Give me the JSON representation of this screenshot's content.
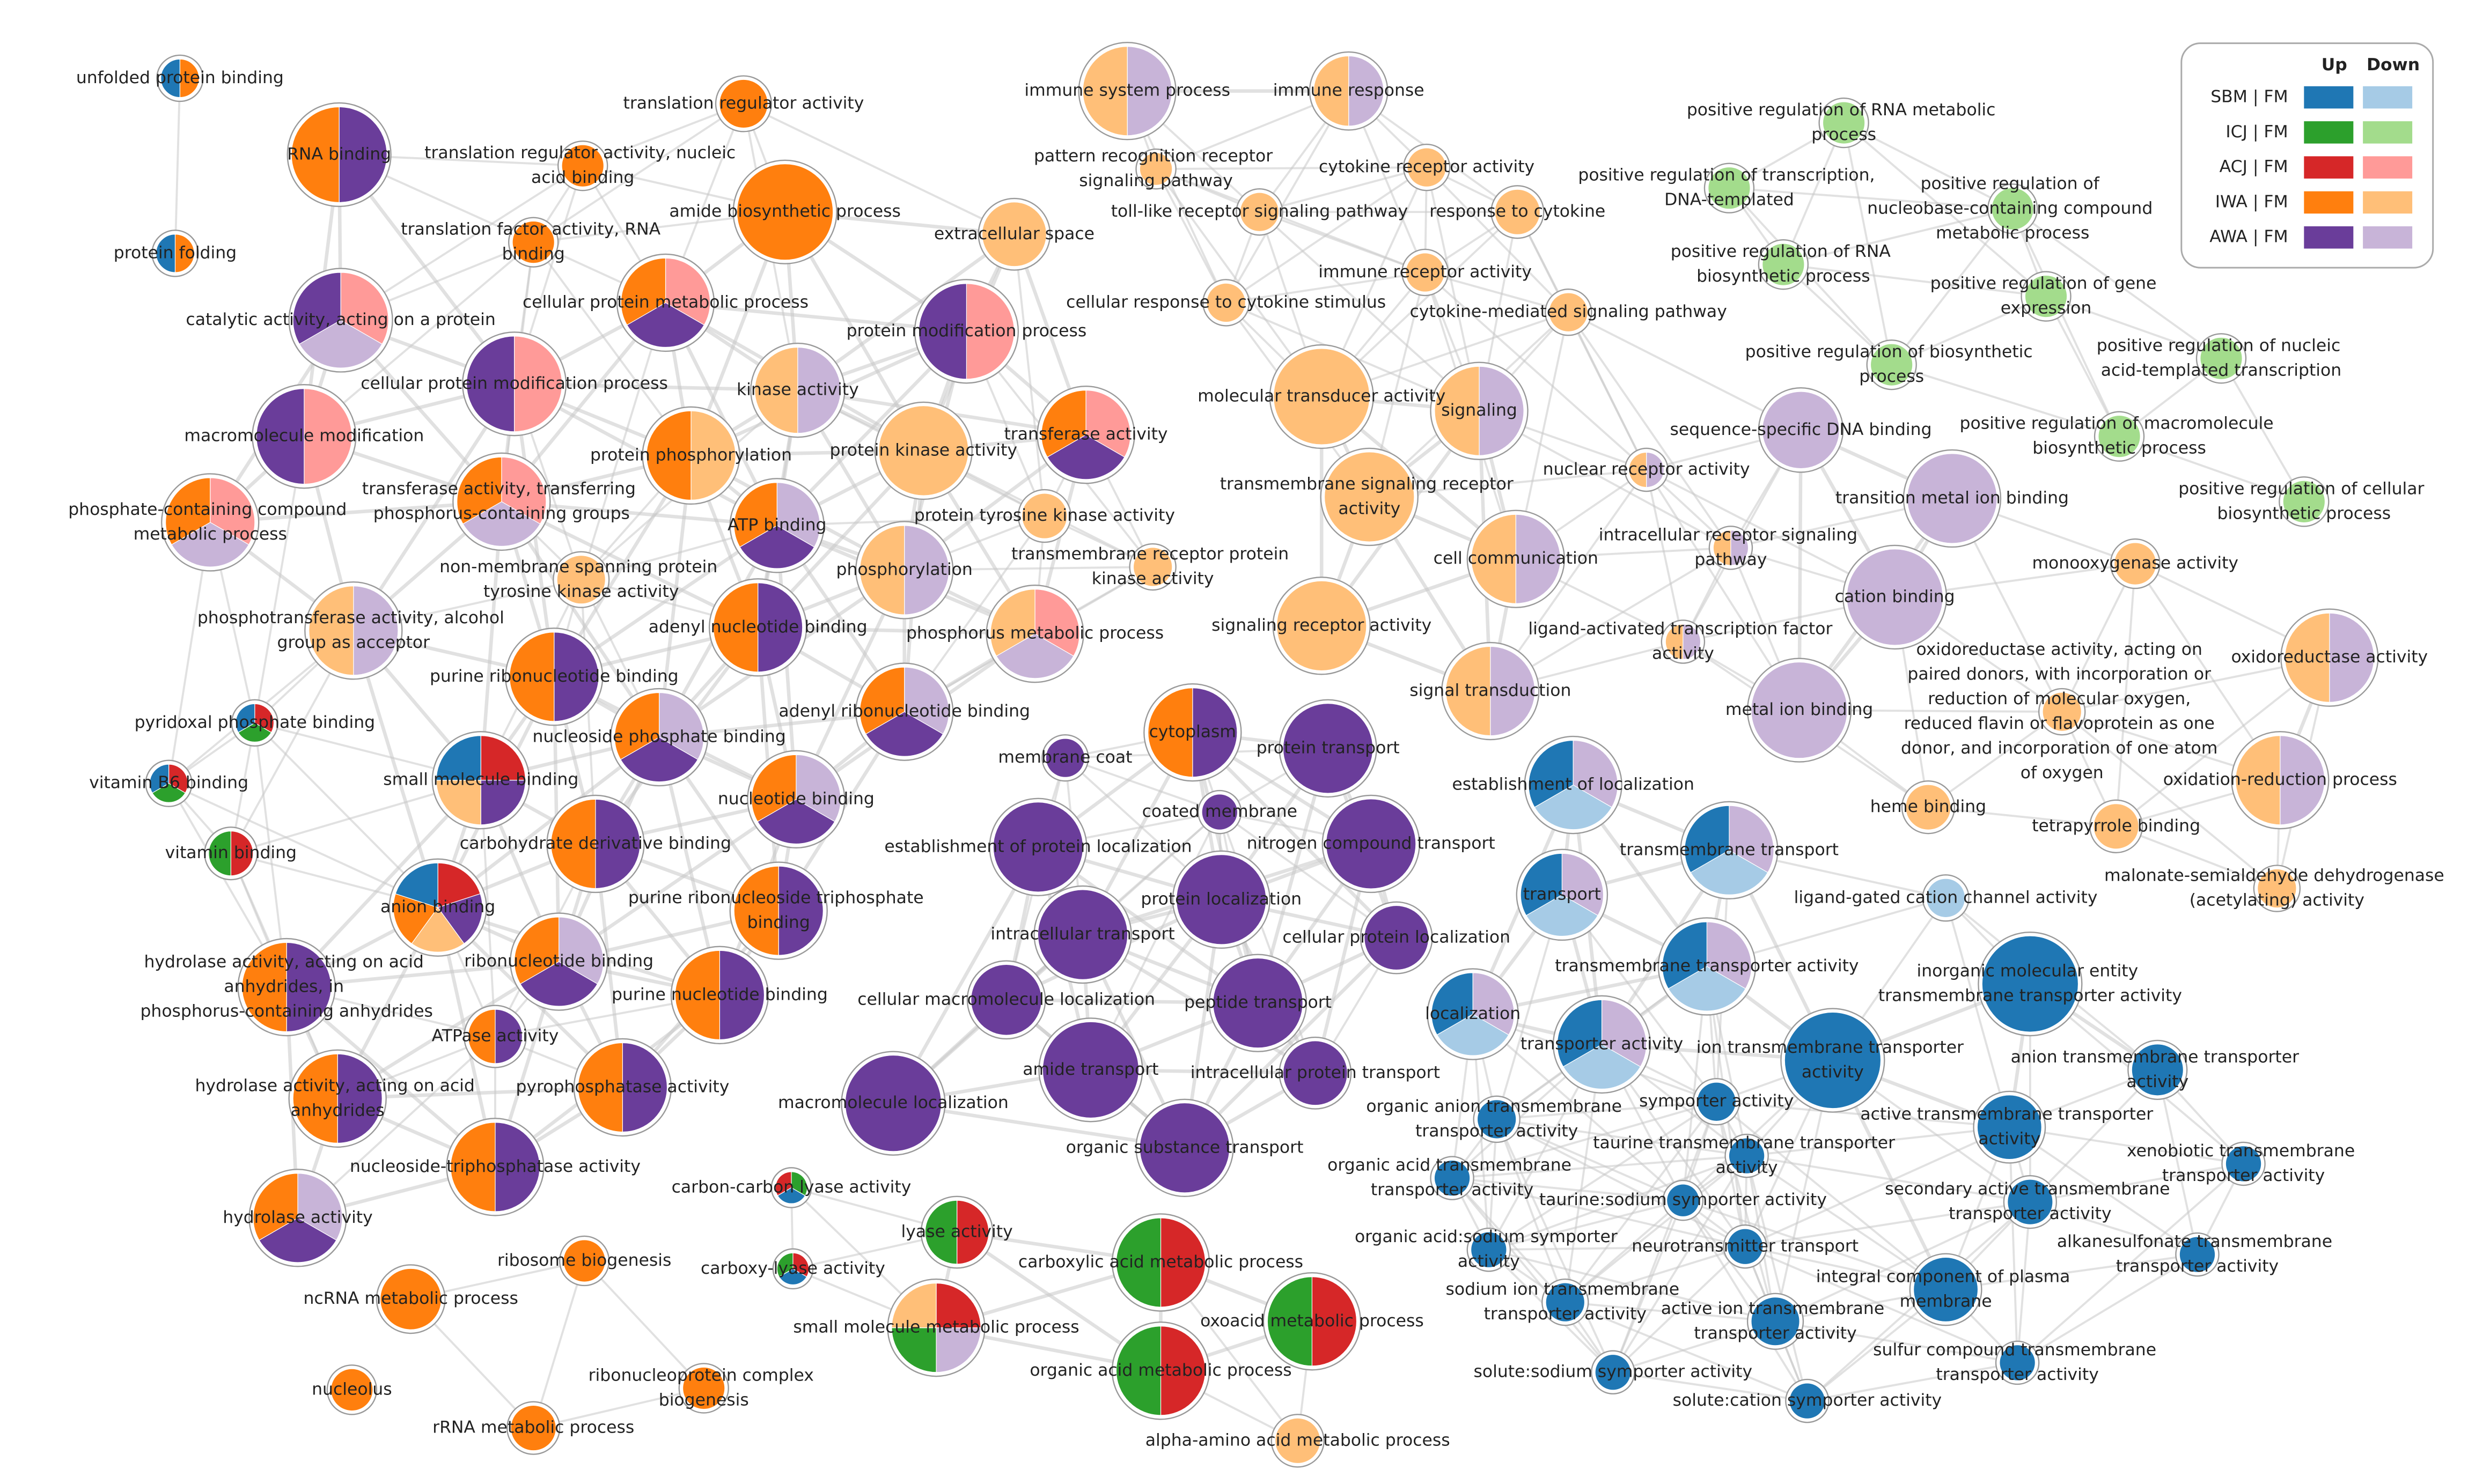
{
  "legend": {
    "columns": [
      "Up",
      "Down"
    ],
    "rows": [
      {
        "label": "SBM | FM",
        "up_color": "#1f77b4",
        "down_color": "#a6cbe6"
      },
      {
        "label": "ICJ | FM",
        "up_color": "#2ca02c",
        "down_color": "#a3dc8c"
      },
      {
        "label": "ACJ | FM",
        "up_color": "#d62728",
        "down_color": "#ff9a98"
      },
      {
        "label": "IWA | FM",
        "up_color": "#ff7f0e",
        "down_color": "#ffbf78"
      },
      {
        "label": "AWA | FM",
        "up_color": "#6a3d9a",
        "down_color": "#c8b4d8"
      }
    ]
  },
  "nodes": [
    {
      "label": "unfolded protein binding"
    },
    {
      "label": "protein folding"
    },
    {
      "label": "RNA binding"
    },
    {
      "label": "translation regulator activity"
    },
    {
      "label": "translation regulator activity, nucleic acid binding"
    },
    {
      "label": "translation factor activity, RNA binding"
    },
    {
      "label": "amide biosynthetic process"
    },
    {
      "label": "extracellular space"
    },
    {
      "label": "catalytic activity, acting on a protein"
    },
    {
      "label": "cellular protein metabolic process"
    },
    {
      "label": "protein modification process"
    },
    {
      "label": "cellular protein modification process"
    },
    {
      "label": "kinase activity"
    },
    {
      "label": "macromolecule modification"
    },
    {
      "label": "transferase activity"
    },
    {
      "label": "protein kinase activity"
    },
    {
      "label": "protein phosphorylation"
    },
    {
      "label": "transferase activity, transferring phosphorus-containing groups"
    },
    {
      "label": "phosphate-containing compound metabolic process"
    },
    {
      "label": "protein tyrosine kinase activity"
    },
    {
      "label": "ATP binding"
    },
    {
      "label": "non-membrane spanning protein tyrosine kinase activity"
    },
    {
      "label": "phosphorylation"
    },
    {
      "label": "transmembrane receptor protein kinase activity"
    },
    {
      "label": "phosphotransferase activity, alcohol group as acceptor"
    },
    {
      "label": "adenyl nucleotide binding"
    },
    {
      "label": "phosphorus metabolic process"
    },
    {
      "label": "purine ribonucleotide binding"
    },
    {
      "label": "nucleoside phosphate binding"
    },
    {
      "label": "adenyl ribonucleotide binding"
    },
    {
      "label": "pyridoxal phosphate binding"
    },
    {
      "label": "small molecule binding"
    },
    {
      "label": "nucleotide binding"
    },
    {
      "label": "vitamin B6 binding"
    },
    {
      "label": "carbohydrate derivative binding"
    },
    {
      "label": "vitamin binding"
    },
    {
      "label": "purine ribonucleoside triphosphate binding"
    },
    {
      "label": "anion binding"
    },
    {
      "label": "ribonucleotide binding"
    },
    {
      "label": "purine nucleotide binding"
    },
    {
      "label": "hydrolase activity, acting on acid anhydrides, in phosphorus-containing anhydrides"
    },
    {
      "label": "ATPase activity"
    },
    {
      "label": "pyrophosphatase activity"
    },
    {
      "label": "hydrolase activity, acting on acid anhydrides"
    },
    {
      "label": "nucleoside-triphosphatase activity"
    },
    {
      "label": "hydrolase activity"
    },
    {
      "label": "ribosome biogenesis"
    },
    {
      "label": "ncRNA metabolic process"
    },
    {
      "label": "nucleolus"
    },
    {
      "label": "ribonucleoprotein complex biogenesis"
    },
    {
      "label": "rRNA metabolic process"
    },
    {
      "label": "immune system process"
    },
    {
      "label": "immune response"
    },
    {
      "label": "pattern recognition receptor signaling pathway"
    },
    {
      "label": "cytokine receptor activity"
    },
    {
      "label": "toll-like receptor signaling pathway"
    },
    {
      "label": "response to cytokine"
    },
    {
      "label": "immune receptor activity"
    },
    {
      "label": "cellular response to cytokine stimulus"
    },
    {
      "label": "cytokine-mediated signaling pathway"
    },
    {
      "label": "molecular transducer activity"
    },
    {
      "label": "signaling"
    },
    {
      "label": "transmembrane signaling receptor activity"
    },
    {
      "label": "signaling receptor activity"
    },
    {
      "label": "cell communication"
    },
    {
      "label": "signal transduction"
    },
    {
      "label": "positive regulation of RNA metabolic process"
    },
    {
      "label": "positive regulation of transcription, DNA-templated"
    },
    {
      "label": "positive regulation of nucleobase-containing compound metabolic process"
    },
    {
      "label": "positive regulation of RNA biosynthetic process"
    },
    {
      "label": "positive regulation of gene expression"
    },
    {
      "label": "positive regulation of biosynthetic process"
    },
    {
      "label": "positive regulation of nucleic acid-templated transcription"
    },
    {
      "label": "positive regulation of macromolecule biosynthetic process"
    },
    {
      "label": "positive regulation of cellular biosynthetic process"
    },
    {
      "label": "sequence-specific DNA binding"
    },
    {
      "label": "nuclear receptor activity"
    },
    {
      "label": "transition metal ion binding"
    },
    {
      "label": "intracellular receptor signaling pathway"
    },
    {
      "label": "monooxygenase activity"
    },
    {
      "label": "cation binding"
    },
    {
      "label": "ligand-activated transcription factor activity"
    },
    {
      "label": "oxidoreductase activity"
    },
    {
      "label": "metal ion binding"
    },
    {
      "label": "oxidoreductase activity, acting on paired donors, with incorporation or reduction of molecular oxygen, reduced flavin or flavoprotein as one donor, and incorporation of one atom of oxygen"
    },
    {
      "label": "heme binding"
    },
    {
      "label": "oxidation-reduction process"
    },
    {
      "label": "tetrapyrrole binding"
    },
    {
      "label": "malonate-semialdehyde dehydrogenase (acetylating) activity"
    },
    {
      "label": "membrane coat"
    },
    {
      "label": "cytoplasm"
    },
    {
      "label": "protein transport"
    },
    {
      "label": "coated membrane"
    },
    {
      "label": "establishment of protein localization"
    },
    {
      "label": "nitrogen compound transport"
    },
    {
      "label": "protein localization"
    },
    {
      "label": "intracellular transport"
    },
    {
      "label": "cellular protein localization"
    },
    {
      "label": "cellular macromolecule localization"
    },
    {
      "label": "peptide transport"
    },
    {
      "label": "amide transport"
    },
    {
      "label": "intracellular protein transport"
    },
    {
      "label": "macromolecule localization"
    },
    {
      "label": "organic substance transport"
    },
    {
      "label": "carbon-carbon lyase activity"
    },
    {
      "label": "lyase activity"
    },
    {
      "label": "carboxy-lyase activity"
    },
    {
      "label": "carboxylic acid metabolic process"
    },
    {
      "label": "small molecule metabolic process"
    },
    {
      "label": "oxoacid metabolic process"
    },
    {
      "label": "organic acid metabolic process"
    },
    {
      "label": "alpha-amino acid metabolic process"
    },
    {
      "label": "establishment of localization"
    },
    {
      "label": "transmembrane transport"
    },
    {
      "label": "ligand-gated cation channel activity"
    },
    {
      "label": "transport"
    },
    {
      "label": "inorganic molecular entity transmembrane transporter activity"
    },
    {
      "label": "transmembrane transporter activity"
    },
    {
      "label": "localization"
    },
    {
      "label": "transporter activity"
    },
    {
      "label": "ion transmembrane transporter activity"
    },
    {
      "label": "anion transmembrane transporter activity"
    },
    {
      "label": "organic anion transmembrane transporter activity"
    },
    {
      "label": "symporter activity"
    },
    {
      "label": "active transmembrane transporter activity"
    },
    {
      "label": "taurine transmembrane transporter activity"
    },
    {
      "label": "organic acid transmembrane transporter activity"
    },
    {
      "label": "xenobiotic transmembrane transporter activity"
    },
    {
      "label": "taurine:sodium symporter activity"
    },
    {
      "label": "secondary active transmembrane transporter activity"
    },
    {
      "label": "organic acid:sodium symporter activity"
    },
    {
      "label": "neurotransmitter transport"
    },
    {
      "label": "alkanesulfonate transmembrane transporter activity"
    },
    {
      "label": "integral component of plasma membrane"
    },
    {
      "label": "sodium ion transmembrane transporter activity"
    },
    {
      "label": "active ion transmembrane transporter activity"
    },
    {
      "label": "sulfur compound transmembrane transporter activity"
    },
    {
      "label": "solute:sodium symporter activity"
    },
    {
      "label": "solute:cation symporter activity"
    }
  ]
}
